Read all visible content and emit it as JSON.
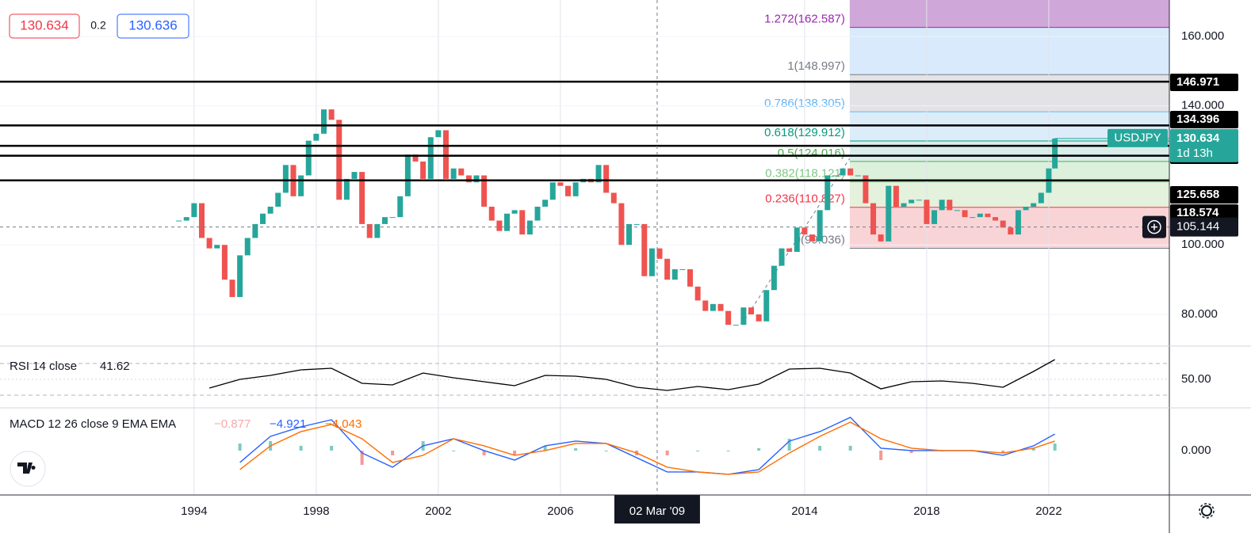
{
  "chart_data": {
    "type": "candlestick",
    "symbol": "USDJPY",
    "x": [
      1993.5,
      1993.75,
      1994,
      1994.25,
      1994.5,
      1994.75,
      1995,
      1995.25,
      1995.5,
      1995.75,
      1996,
      1996.25,
      1996.5,
      1996.75,
      1997,
      1997.25,
      1997.5,
      1997.75,
      1998,
      1998.25,
      1998.5,
      1998.75,
      1999,
      1999.25,
      1999.5,
      1999.75,
      2000,
      2000.25,
      2000.5,
      2000.75,
      2001,
      2001.25,
      2001.5,
      2001.75,
      2002,
      2002.25,
      2002.5,
      2002.75,
      2003,
      2003.25,
      2003.5,
      2003.75,
      2004,
      2004.25,
      2004.5,
      2004.75,
      2005,
      2005.25,
      2005.5,
      2005.75,
      2006,
      2006.25,
      2006.5,
      2006.75,
      2007,
      2007.25,
      2007.5,
      2007.75,
      2008,
      2008.25,
      2008.5,
      2008.75,
      2009,
      2009.25,
      2009.5,
      2009.75,
      2010,
      2010.25,
      2010.5,
      2010.75,
      2011,
      2011.25,
      2011.5,
      2011.75,
      2012,
      2012.25,
      2012.5,
      2012.75,
      2013,
      2013.25,
      2013.5,
      2013.75,
      2014,
      2014.25,
      2014.5,
      2014.75,
      2015,
      2015.25,
      2015.5,
      2015.75,
      2016,
      2016.25,
      2016.5,
      2016.75,
      2017,
      2017.25,
      2017.5,
      2017.75,
      2018,
      2018.25,
      2018.5,
      2018.75,
      2019,
      2019.25,
      2019.5,
      2019.75,
      2020,
      2020.25,
      2020.5,
      2020.75,
      2021,
      2021.25,
      2021.5,
      2021.75,
      2022,
      2022.2
    ],
    "close": [
      107,
      108,
      112,
      102,
      99,
      100,
      90,
      85,
      97,
      102,
      106,
      109,
      111,
      115,
      123,
      114,
      120,
      130,
      132,
      139,
      136,
      113,
      119,
      121,
      106,
      102,
      106,
      108,
      108,
      114,
      126,
      124,
      119,
      131,
      133,
      119,
      122,
      120,
      118,
      120,
      111,
      107,
      104,
      109,
      110,
      103,
      107,
      111,
      113,
      118,
      117,
      114,
      118,
      119,
      118,
      123,
      115,
      112,
      100,
      106,
      106,
      91,
      99,
      96,
      90,
      93,
      93,
      88,
      84,
      81,
      83,
      81,
      77,
      77,
      82,
      80,
      78,
      87,
      94,
      99,
      98,
      105,
      103,
      101,
      110,
      120,
      120,
      122,
      120,
      120,
      112,
      103,
      101,
      117,
      111,
      112,
      113,
      113,
      106,
      110,
      113,
      110,
      110,
      108,
      108,
      109,
      108,
      107,
      105,
      103,
      110,
      111,
      112,
      115,
      122,
      130.634
    ],
    "xlim": [
      1987.64,
      2025.95
    ],
    "ylim": [
      70.88,
      170.48
    ],
    "xticks": [
      1994,
      1998,
      2002,
      2006,
      2014,
      2018,
      2022
    ],
    "yticks": [
      {
        "value": 160,
        "label": "160.000"
      },
      {
        "value": 140,
        "label": "140.000"
      },
      {
        "value": 100,
        "label": "100.000"
      },
      {
        "value": 80,
        "label": "80.000"
      }
    ],
    "up_color": "#26a69a",
    "down_color": "#ef5350",
    "last_price": 130.634,
    "countdown": "1d 13h",
    "quote": {
      "bid": 130.634,
      "spread": 0.2,
      "ask": 130.636
    },
    "levels": [
      146.971,
      134.396,
      128.504,
      125.658,
      118.574
    ],
    "fib": {
      "x_start": 2015.48,
      "levels": [
        {
          "label": "0(99.036)",
          "value": 99.036,
          "color": "#787b86",
          "fill": "#f9d4d6"
        },
        {
          "label": "0.236(110.827)",
          "value": 110.827,
          "color": "#f23645",
          "fill": "#e3f1dd"
        },
        {
          "label": "0.382(118.121)",
          "value": 118.121,
          "color": "#81c784",
          "fill": "#dcf0dc"
        },
        {
          "label": "0.5(124.016)",
          "value": 124.016,
          "color": "#4caf50",
          "fill": "#d9eeea"
        },
        {
          "label": "0.618(129.912)",
          "value": 129.912,
          "color": "#089981",
          "fill": "#dcedf9"
        },
        {
          "label": "0.786(138.305)",
          "value": 138.305,
          "color": "#64b5f6",
          "fill": "#e3e3e5"
        },
        {
          "label": "1(148.997)",
          "value": 148.997,
          "color": "#787b86",
          "fill": "#d8eafb"
        },
        {
          "label": "1.272(162.587)",
          "value": 162.587,
          "color": "#9c27b0",
          "fill": "#cfa7d8"
        }
      ]
    },
    "crosshair": {
      "x": 2009.17,
      "x_label": "02 Mar '09",
      "price": 105.144
    },
    "rsi": {
      "name": "RSI 14 close",
      "value_label": "41.62",
      "color": "#000000",
      "x": [
        1994.5,
        1995.5,
        1996.5,
        1997.5,
        1998.5,
        1999.5,
        2000.5,
        2001.5,
        2002.5,
        2003.5,
        2004.5,
        2005.5,
        2006.5,
        2007.5,
        2008.5,
        2009.5,
        2010.5,
        2011.5,
        2012.5,
        2013.5,
        2014.5,
        2015.5,
        2016.5,
        2017.5,
        2018.5,
        2019.5,
        2020.5,
        2021.5,
        2022.2
      ],
      "values": [
        39,
        50,
        55,
        62,
        64,
        45,
        43,
        58,
        52,
        47,
        42,
        55,
        54,
        50,
        40,
        36,
        41,
        37,
        44,
        63,
        64,
        58,
        38,
        47,
        48,
        45,
        40,
        60,
        75
      ],
      "ylim": [
        14,
        92
      ],
      "yticks": [
        {
          "value": 50,
          "label": "50.00"
        }
      ],
      "bands": [
        70,
        30
      ]
    },
    "macd": {
      "name": "MACD 12 26 close 9 EMA EMA",
      "legend": [
        "−0.877",
        "−4.921",
        "−4.043"
      ],
      "legend_colors": [
        "#f7a9a7",
        "#2962ff",
        "#ff6d00"
      ],
      "x": [
        1995.5,
        1996.5,
        1997.5,
        1998.5,
        1999.5,
        2000.5,
        2001.5,
        2002.5,
        2003.5,
        2004.5,
        2005.5,
        2006.5,
        2007.5,
        2008.5,
        2009.5,
        2010.5,
        2011.5,
        2012.5,
        2013.5,
        2014.5,
        2015.5,
        2016.5,
        2017.5,
        2018.5,
        2019.5,
        2020.5,
        2021.5,
        2022.2
      ],
      "macd": [
        -5,
        6,
        10,
        13,
        -1,
        -7,
        2,
        5,
        0,
        -4,
        2,
        4,
        3,
        -3,
        -9,
        -9,
        -10,
        -8,
        4,
        8,
        14,
        1,
        0,
        0,
        0,
        -2,
        2,
        7
      ],
      "signal": [
        -8,
        2,
        8,
        11,
        5,
        -5,
        -2,
        5,
        2,
        -2,
        0,
        3,
        3,
        -1,
        -7,
        -9,
        -10,
        -9,
        -1,
        6,
        12,
        5,
        1,
        0,
        0,
        -1,
        1,
        4
      ],
      "histogram": [
        3,
        4,
        2,
        2,
        -6,
        -2,
        4,
        0,
        -2,
        -2,
        2,
        1,
        0,
        -2,
        -2,
        0,
        0,
        1,
        5,
        2,
        2,
        -4,
        -1,
        0,
        0,
        -1,
        1,
        3
      ],
      "macd_color": "#2962ff",
      "signal_color": "#ff6d00",
      "hist_up": "#26a69a",
      "hist_down": "#ef5350",
      "ylim": [
        -18.7,
        18
      ],
      "yticks": [
        {
          "value": 0,
          "label": "0.000"
        }
      ]
    }
  }
}
